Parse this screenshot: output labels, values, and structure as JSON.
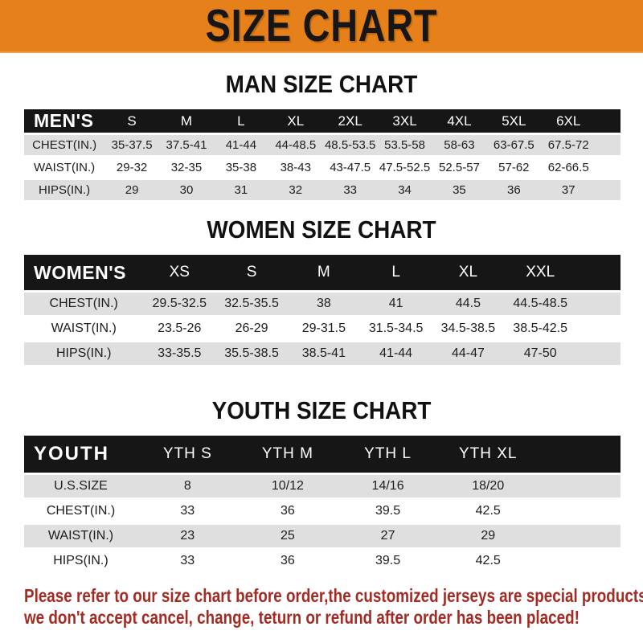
{
  "banner": {
    "title": "SIZE CHART"
  },
  "sections": {
    "men": {
      "title": "MAN SIZE CHART"
    },
    "women": {
      "title": "WOMEN SIZE CHART"
    },
    "youth": {
      "title": "YOUTH SIZE CHART"
    }
  },
  "tables": {
    "men": {
      "header": [
        "MEN'S",
        "S",
        "M",
        "L",
        "XL",
        "2XL",
        "3XL",
        "4XL",
        "5XL",
        "6XL"
      ],
      "rows": [
        [
          "CHEST(IN.)",
          "35-37.5",
          "37.5-41",
          "41-44",
          "44-48.5",
          "48.5-53.5",
          "53.5-58",
          "58-63",
          "63-67.5",
          "67.5-72"
        ],
        [
          "WAIST(IN.)",
          "29-32",
          "32-35",
          "35-38",
          "38-43",
          "43-47.5",
          "47.5-52.5",
          "52.5-57",
          "57-62",
          "62-66.5"
        ],
        [
          "HIPS(IN.)",
          "29",
          "30",
          "31",
          "32",
          "33",
          "34",
          "35",
          "36",
          "37"
        ]
      ]
    },
    "women": {
      "header": [
        "WOMEN'S",
        "XS",
        "S",
        "M",
        "L",
        "XL",
        "XXL"
      ],
      "rows": [
        [
          "CHEST(IN.)",
          "29.5-32.5",
          "32.5-35.5",
          "38",
          "41",
          "44.5",
          "44.5-48.5"
        ],
        [
          "WAIST(IN.)",
          "23.5-26",
          "26-29",
          "29-31.5",
          "31.5-34.5",
          "34.5-38.5",
          "38.5-42.5"
        ],
        [
          "HIPS(IN.)",
          "33-35.5",
          "35.5-38.5",
          "38.5-41",
          "41-44",
          "44-47",
          "47-50"
        ]
      ]
    },
    "youth": {
      "header": [
        "YOUTH",
        "YTH S",
        "YTH M",
        "YTH L",
        "YTH XL"
      ],
      "rows": [
        [
          "U.S.SIZE",
          "8",
          "10/12",
          "14/16",
          "18/20"
        ],
        [
          "CHEST(IN.)",
          "33",
          "36",
          "39.5",
          "42.5"
        ],
        [
          "WAIST(IN.)",
          "23",
          "25",
          "27",
          "29"
        ],
        [
          "HIPS(IN.)",
          "33",
          "36",
          "39.5",
          "42.5"
        ]
      ]
    }
  },
  "footer": {
    "line1": "Please refer to our size chart before order,the customized jerseys are special products,",
    "line2": "we don't accept cancel, change, teturn or refund after order has been placed!"
  },
  "colors": {
    "banner_orange": "#E6801A",
    "header_black": "#161616",
    "row_gray": "#DFDFDF",
    "footer_red": "#A32B23",
    "title_black": "#111111"
  }
}
